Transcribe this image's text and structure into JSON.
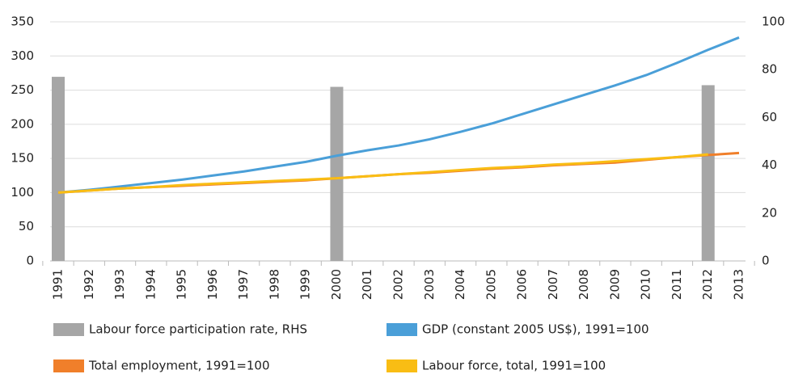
{
  "chart_data": {
    "type": "combo",
    "categories": [
      "1991",
      "1992",
      "1993",
      "1994",
      "1995",
      "1996",
      "1997",
      "1998",
      "1999",
      "2000",
      "2001",
      "2002",
      "2003",
      "2004",
      "2005",
      "2006",
      "2007",
      "2008",
      "2009",
      "2010",
      "2011",
      "2012",
      "2013"
    ],
    "series": [
      {
        "name": "Labour force participation rate, RHS",
        "type": "bar",
        "axis": "y2",
        "color": "#a6a6a6",
        "values": [
          77,
          null,
          null,
          null,
          null,
          null,
          null,
          null,
          null,
          72.8,
          null,
          null,
          null,
          null,
          null,
          null,
          null,
          null,
          null,
          null,
          null,
          73.5,
          null
        ]
      },
      {
        "name": "GDP (constant 2005 US$), 1991=100",
        "type": "line",
        "color": "#4a9fd8",
        "values": [
          100,
          104,
          109,
          114,
          119,
          125,
          131,
          138,
          145,
          154,
          162,
          169,
          178,
          189,
          201,
          215,
          229,
          243,
          257,
          272,
          290,
          309,
          327
        ]
      },
      {
        "name": "Total employment, 1991=100",
        "type": "line",
        "color": "#f07f2a",
        "values": [
          100,
          103,
          106,
          108,
          110,
          112,
          114,
          116,
          118,
          121,
          124,
          127,
          129,
          132,
          135,
          137,
          140,
          142,
          144,
          148,
          152,
          155,
          158
        ]
      },
      {
        "name": "Labour force, total, 1991=100",
        "type": "line",
        "color": "#f9bd14",
        "values": [
          100,
          103,
          106,
          108,
          111,
          113,
          115,
          117,
          119,
          121,
          124,
          127,
          130,
          133,
          136,
          138,
          141,
          143,
          146,
          149,
          152,
          156,
          null
        ]
      }
    ],
    "ylim": [
      0,
      350
    ],
    "yticks": [
      0,
      50,
      100,
      150,
      200,
      250,
      300,
      350
    ],
    "y2lim": [
      0,
      100
    ],
    "y2ticks": [
      0,
      20,
      40,
      60,
      80,
      100
    ],
    "grid": true
  }
}
